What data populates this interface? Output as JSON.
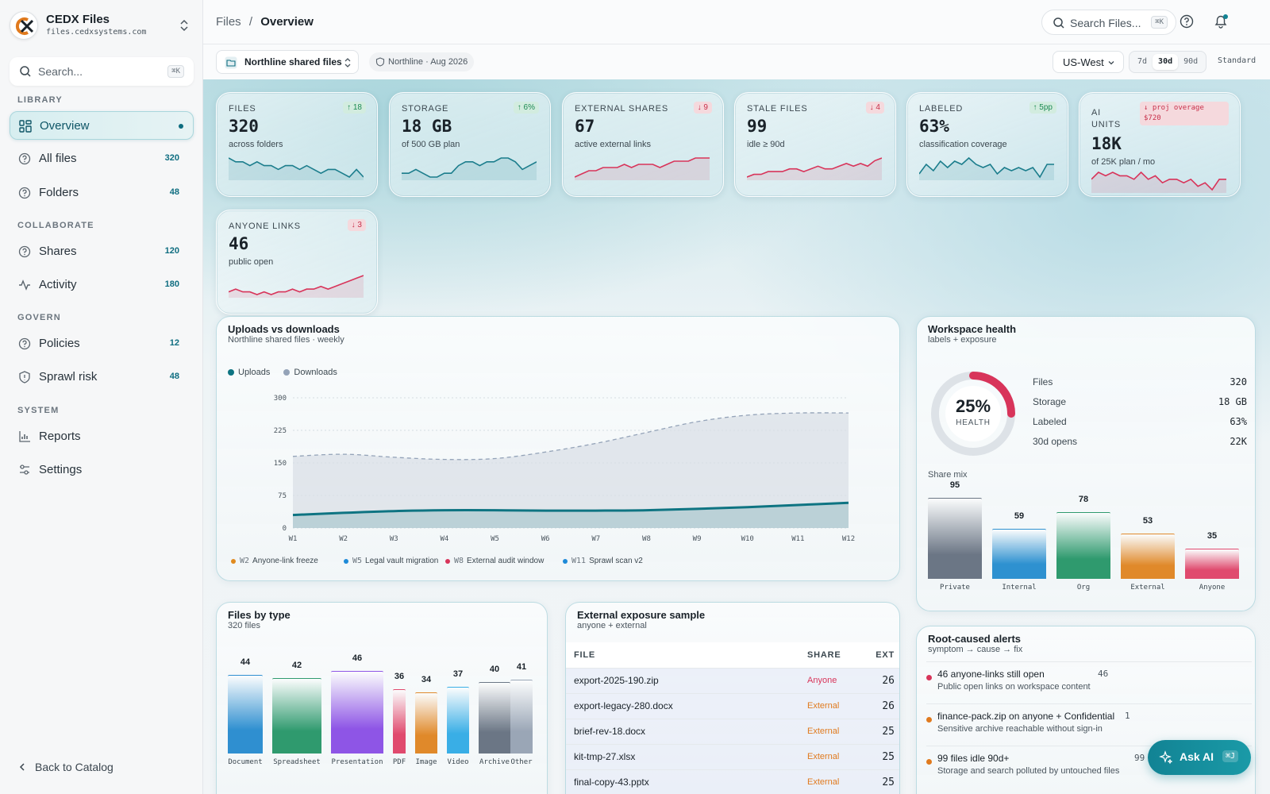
{
  "app": {
    "name": "CEDX Files",
    "url": "files.cedxsystems.com"
  },
  "sidebar": {
    "search_placeholder": "Search...",
    "search_shortcut": "⌘K",
    "sections": [
      {
        "label": "LIBRARY"
      },
      {
        "label": "COLLABORATE"
      },
      {
        "label": "GOVERN"
      },
      {
        "label": "SYSTEM"
      }
    ],
    "items": [
      {
        "label": "Overview",
        "count": "",
        "icon": "grid-icon",
        "active": true
      },
      {
        "label": "All files",
        "count": "320",
        "icon": "help-circle-icon"
      },
      {
        "label": "Folders",
        "count": "48",
        "icon": "help-circle-icon"
      },
      {
        "label": "Shares",
        "count": "120",
        "icon": "help-circle-icon"
      },
      {
        "label": "Activity",
        "count": "180",
        "icon": "activity-icon"
      },
      {
        "label": "Policies",
        "count": "12",
        "icon": "help-circle-icon"
      },
      {
        "label": "Sprawl risk",
        "count": "48",
        "icon": "shield-icon"
      },
      {
        "label": "Reports",
        "count": "",
        "icon": "bar-chart-icon"
      },
      {
        "label": "Settings",
        "count": "",
        "icon": "sliders-icon"
      }
    ],
    "back_label": "Back to Catalog"
  },
  "topbar": {
    "breadcrumb_root": "Files",
    "breadcrumb_sep": "/",
    "breadcrumb_current": "Overview",
    "search_placeholder": "Search Files...",
    "search_shortcut": "⌘K"
  },
  "subbar": {
    "workspace": "Northline shared files",
    "tenant_chip": "Northline · Aug 2026",
    "region": "US-West",
    "ranges": [
      "7d",
      "30d",
      "90d"
    ],
    "active_range": "30d",
    "tier": "Standard"
  },
  "kpis": [
    {
      "label": "FILES",
      "value": "320",
      "sub": "across folders",
      "delta": "↑ 18",
      "trend": "up",
      "color": "#1b7d8c",
      "spark": [
        12,
        11,
        11,
        10,
        11,
        10,
        10,
        9,
        10,
        10,
        9,
        10,
        9,
        8,
        9,
        9,
        8,
        7,
        9,
        7
      ]
    },
    {
      "label": "STORAGE",
      "value": "18 GB",
      "sub": "of 500 GB plan",
      "delta": "↑ 6%",
      "trend": "up",
      "color": "#1b7d8c",
      "spark": [
        8,
        8,
        9,
        8,
        7,
        7,
        8,
        8,
        10,
        11,
        11,
        10,
        11,
        11,
        12,
        12,
        11,
        9,
        10,
        11
      ]
    },
    {
      "label": "EXTERNAL SHARES",
      "value": "67",
      "sub": "active external links",
      "delta": "↓ 9",
      "trend": "down",
      "color": "#d8345a",
      "spark": [
        6,
        7,
        8,
        8,
        9,
        9,
        9,
        10,
        9,
        10,
        10,
        10,
        9,
        10,
        11,
        11,
        11,
        12,
        12,
        12
      ]
    },
    {
      "label": "STALE FILES",
      "value": "99",
      "sub": "idle ≥ 90d",
      "delta": "↓ 4",
      "trend": "down",
      "color": "#d8345a",
      "spark": [
        6,
        7,
        7,
        8,
        8,
        8,
        9,
        9,
        8,
        9,
        10,
        9,
        9,
        10,
        11,
        10,
        11,
        10,
        12,
        13
      ]
    },
    {
      "label": "LABELED",
      "value": "63%",
      "sub": "classification coverage",
      "delta": "↑ 5pp",
      "trend": "up",
      "color": "#1b7d8c",
      "spark": [
        8,
        11,
        9,
        12,
        10,
        12,
        11,
        13,
        11,
        10,
        11,
        8,
        10,
        9,
        10,
        9,
        10,
        7,
        11,
        11
      ]
    },
    {
      "label": "AI UNITS",
      "value": "18K",
      "sub": "of 25K plan / mo",
      "delta": "↓ proj overage $720",
      "trend": "down",
      "color": "#d8345a",
      "spark": [
        10,
        12,
        11,
        12,
        11,
        11,
        10,
        12,
        10,
        11,
        9,
        10,
        10,
        9,
        10,
        8,
        9,
        7,
        10,
        10
      ]
    },
    {
      "label": "ANYONE LINKS",
      "value": "46",
      "sub": "public open",
      "delta": "↓ 3",
      "trend": "down",
      "color": "#d8345a",
      "spark": [
        6,
        7,
        6,
        6,
        5,
        6,
        5,
        6,
        6,
        7,
        6,
        7,
        7,
        8,
        7,
        8,
        9,
        10,
        11,
        12
      ]
    }
  ],
  "uploads_chart": {
    "title": "Uploads vs downloads",
    "subtitle": "Northline shared files · weekly",
    "chart_data": {
      "type": "area",
      "categories": [
        "W1",
        "W2",
        "W3",
        "W4",
        "W5",
        "W6",
        "W7",
        "W8",
        "W9",
        "W10",
        "W11",
        "W12"
      ],
      "series": [
        {
          "name": "Uploads",
          "values": [
            30,
            35,
            39,
            41,
            41,
            40,
            40,
            41,
            44,
            48,
            53,
            58
          ],
          "color": "#0e7482"
        },
        {
          "name": "Downloads",
          "values": [
            165,
            170,
            163,
            158,
            160,
            175,
            195,
            220,
            245,
            260,
            265,
            265
          ],
          "color": "#94a3b8"
        }
      ],
      "ylim": [
        0,
        300
      ],
      "yticks": [
        0,
        75,
        150,
        225,
        300
      ],
      "annotations": [
        {
          "week": "W2",
          "label": "Anyone-link freeze",
          "color": "#e08a1e"
        },
        {
          "week": "W5",
          "label": "Legal vault migration",
          "color": "#1e8ad8"
        },
        {
          "week": "W8",
          "label": "External audit window",
          "color": "#d8345a"
        },
        {
          "week": "W11",
          "label": "Sprawl scan v2",
          "color": "#1e8ad8"
        }
      ]
    }
  },
  "health": {
    "title": "Workspace health",
    "subtitle": "labels + exposure",
    "score": "25%",
    "score_value": 0.25,
    "score_label": "HEALTH",
    "stats": [
      {
        "label": "Files",
        "value": "320"
      },
      {
        "label": "Storage",
        "value": "18 GB"
      },
      {
        "label": "Labeled",
        "value": "63%"
      },
      {
        "label": "30d opens",
        "value": "22K"
      }
    ],
    "share_mix_label": "Share mix",
    "chart_data": {
      "type": "bar",
      "categories": [
        "Private",
        "Internal",
        "Org",
        "External",
        "Anyone"
      ],
      "values": [
        95,
        59,
        78,
        53,
        35
      ],
      "colors": [
        "#6b7685",
        "#2e91d0",
        "#2f9a6e",
        "#e0892a",
        "#e04a6e"
      ]
    }
  },
  "files_by_type": {
    "title": "Files by type",
    "subtitle": "320 files",
    "chart_data": {
      "type": "bar",
      "categories": [
        "Document",
        "Spreadsheet",
        "Presentation",
        "PDF",
        "Image",
        "Video",
        "Archive",
        "Other"
      ],
      "values": [
        44,
        42,
        46,
        36,
        34,
        37,
        40,
        41
      ],
      "colors": [
        "#2f8fd0",
        "#2f9a6e",
        "#8e55e6",
        "#e04a6e",
        "#e0892a",
        "#39aee6",
        "#6b7685",
        "#9aa6b6"
      ]
    }
  },
  "exposure": {
    "title": "External exposure sample",
    "subtitle": "anyone + external",
    "columns": [
      "FILE",
      "SHARE",
      "EXT"
    ],
    "rows": [
      {
        "file": "export-2025-190.zip",
        "share": "Anyone",
        "ext": "26",
        "color": "#d8345a"
      },
      {
        "file": "export-legacy-280.docx",
        "share": "External",
        "ext": "26",
        "color": "#e07a1e"
      },
      {
        "file": "brief-rev-18.docx",
        "share": "External",
        "ext": "25",
        "color": "#e07a1e"
      },
      {
        "file": "kit-tmp-27.xlsx",
        "share": "External",
        "ext": "25",
        "color": "#e07a1e"
      },
      {
        "file": "final-copy-43.pptx",
        "share": "External",
        "ext": "25",
        "color": "#e07a1e"
      }
    ]
  },
  "alerts": {
    "title": "Root-caused alerts",
    "subtitle": "symptom → cause → fix",
    "items": [
      {
        "title": "46 anyone-links still open",
        "sub": "Public open links on workspace content",
        "count": "46",
        "color": "#d8345a"
      },
      {
        "title": "finance-pack.zip on anyone + Confidential",
        "sub": "Sensitive archive reachable without sign-in",
        "count": "1",
        "color": "#e07a1e"
      },
      {
        "title": "99 files idle 90d+",
        "sub": "Storage and search polluted by untouched files",
        "count": "99",
        "color": "#e07a1e"
      }
    ]
  },
  "ask_ai": {
    "label": "Ask AI",
    "shortcut": "⌘J"
  }
}
